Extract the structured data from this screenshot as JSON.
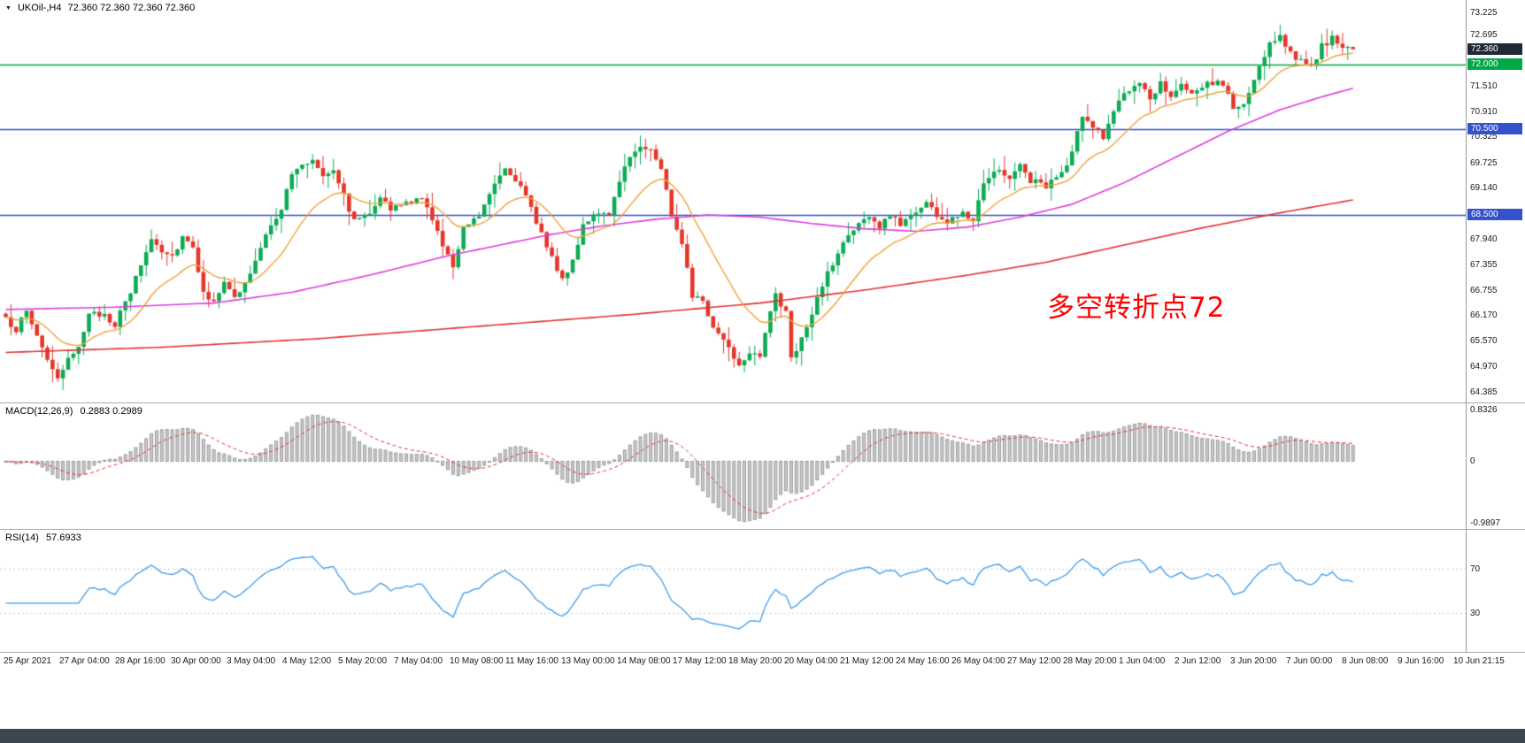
{
  "header": {
    "dropdown_icon": "▼",
    "symbol": "UKOil-,H4",
    "ohlc": "72.360 72.360 72.360 72.360"
  },
  "annotation": {
    "text": "多空转折点72",
    "color": "#ff0000"
  },
  "price_axis": {
    "min": 64.3,
    "max": 73.34,
    "ticks": [
      73.225,
      72.695,
      71.51,
      70.91,
      70.325,
      69.725,
      69.14,
      67.94,
      67.355,
      66.755,
      66.17,
      65.57,
      64.97,
      64.385
    ]
  },
  "levels": [
    {
      "value": 72.0,
      "label": "72.000",
      "color": "#00a846"
    },
    {
      "value": 70.5,
      "label": "70.500",
      "color": "#3352cc"
    },
    {
      "value": 68.5,
      "label": "68.500",
      "color": "#3352cc"
    }
  ],
  "current_price": {
    "value": 72.36,
    "label": "72.360",
    "badge_color": "#1f2833"
  },
  "chart_data": {
    "type": "candlestick",
    "symbol": "UKOil-",
    "timeframe": "H4",
    "title": "UKOil-,H4",
    "candles_count": 260,
    "last_close": 72.36,
    "up_color": "#0cab54",
    "down_color": "#e5362a",
    "close_waypoints": [
      [
        0,
        66.05
      ],
      [
        2,
        65.85
      ],
      [
        4,
        66.25
      ],
      [
        6,
        65.7
      ],
      [
        9,
        64.9
      ],
      [
        10,
        64.62
      ],
      [
        12,
        65.1
      ],
      [
        14,
        65.5
      ],
      [
        16,
        66.15
      ],
      [
        19,
        66.2
      ],
      [
        21,
        65.95
      ],
      [
        24,
        66.7
      ],
      [
        26,
        67.35
      ],
      [
        28,
        67.95
      ],
      [
        30,
        67.7
      ],
      [
        32,
        67.55
      ],
      [
        34,
        68.0
      ],
      [
        36,
        67.8
      ],
      [
        38,
        66.65
      ],
      [
        40,
        66.55
      ],
      [
        42,
        66.9
      ],
      [
        44,
        66.55
      ],
      [
        46,
        66.9
      ],
      [
        48,
        67.4
      ],
      [
        51,
        68.3
      ],
      [
        53,
        68.65
      ],
      [
        55,
        69.45
      ],
      [
        57,
        69.65
      ],
      [
        59,
        69.8
      ],
      [
        61,
        69.45
      ],
      [
        63,
        69.6
      ],
      [
        65,
        68.95
      ],
      [
        67,
        68.35
      ],
      [
        70,
        68.6
      ],
      [
        72,
        68.95
      ],
      [
        74,
        68.6
      ],
      [
        77,
        68.8
      ],
      [
        80,
        68.85
      ],
      [
        82,
        68.45
      ],
      [
        84,
        67.75
      ],
      [
        86,
        67.3
      ],
      [
        88,
        68.25
      ],
      [
        91,
        68.5
      ],
      [
        94,
        69.3
      ],
      [
        96,
        69.6
      ],
      [
        98,
        69.35
      ],
      [
        100,
        68.9
      ],
      [
        102,
        68.35
      ],
      [
        105,
        67.55
      ],
      [
        107,
        66.95
      ],
      [
        109,
        67.45
      ],
      [
        111,
        68.3
      ],
      [
        113,
        68.5
      ],
      [
        116,
        68.45
      ],
      [
        118,
        69.35
      ],
      [
        120,
        69.85
      ],
      [
        122,
        70.15
      ],
      [
        124,
        70.0
      ],
      [
        126,
        69.6
      ],
      [
        128,
        68.5
      ],
      [
        130,
        67.9
      ],
      [
        132,
        66.65
      ],
      [
        134,
        66.45
      ],
      [
        136,
        65.9
      ],
      [
        139,
        65.45
      ],
      [
        141,
        65.0
      ],
      [
        143,
        65.35
      ],
      [
        145,
        65.25
      ],
      [
        147,
        66.3
      ],
      [
        148,
        66.6
      ],
      [
        150,
        66.2
      ],
      [
        151,
        65.2
      ],
      [
        153,
        65.6
      ],
      [
        155,
        66.15
      ],
      [
        157,
        66.9
      ],
      [
        159,
        67.35
      ],
      [
        161,
        67.85
      ],
      [
        163,
        68.2
      ],
      [
        166,
        68.45
      ],
      [
        168,
        68.2
      ],
      [
        170,
        68.5
      ],
      [
        172,
        68.3
      ],
      [
        175,
        68.6
      ],
      [
        177,
        68.8
      ],
      [
        179,
        68.5
      ],
      [
        181,
        68.3
      ],
      [
        184,
        68.6
      ],
      [
        186,
        68.4
      ],
      [
        188,
        69.3
      ],
      [
        190,
        69.55
      ],
      [
        193,
        69.4
      ],
      [
        195,
        69.65
      ],
      [
        197,
        69.3
      ],
      [
        200,
        69.2
      ],
      [
        202,
        69.35
      ],
      [
        204,
        69.6
      ],
      [
        206,
        70.4
      ],
      [
        207,
        70.75
      ],
      [
        209,
        70.6
      ],
      [
        211,
        70.3
      ],
      [
        213,
        70.9
      ],
      [
        215,
        71.35
      ],
      [
        218,
        71.5
      ],
      [
        220,
        71.2
      ],
      [
        222,
        71.6
      ],
      [
        224,
        71.3
      ],
      [
        226,
        71.5
      ],
      [
        228,
        71.25
      ],
      [
        230,
        71.5
      ],
      [
        233,
        71.6
      ],
      [
        235,
        71.35
      ],
      [
        236,
        70.95
      ],
      [
        238,
        71.05
      ],
      [
        241,
        71.9
      ],
      [
        243,
        72.55
      ],
      [
        245,
        72.65
      ],
      [
        247,
        72.3
      ],
      [
        249,
        72.05
      ],
      [
        251,
        71.9
      ],
      [
        253,
        72.45
      ],
      [
        255,
        72.6
      ],
      [
        257,
        72.35
      ],
      [
        259,
        72.36
      ]
    ],
    "moving_averages": {
      "fast": {
        "type": "ema",
        "period": 16,
        "color": "#eda33b"
      },
      "mid": {
        "color": "#dd3ddd",
        "waypoints": [
          [
            0,
            66.3
          ],
          [
            20,
            66.35
          ],
          [
            40,
            66.45
          ],
          [
            55,
            66.7
          ],
          [
            70,
            67.1
          ],
          [
            85,
            67.55
          ],
          [
            95,
            67.8
          ],
          [
            105,
            68.05
          ],
          [
            115,
            68.25
          ],
          [
            125,
            68.4
          ],
          [
            135,
            68.5
          ],
          [
            145,
            68.45
          ],
          [
            155,
            68.3
          ],
          [
            165,
            68.18
          ],
          [
            175,
            68.12
          ],
          [
            185,
            68.22
          ],
          [
            195,
            68.45
          ],
          [
            205,
            68.75
          ],
          [
            215,
            69.25
          ],
          [
            225,
            69.85
          ],
          [
            235,
            70.45
          ],
          [
            245,
            70.95
          ],
          [
            253,
            71.25
          ],
          [
            259,
            71.45
          ]
        ]
      },
      "slow": {
        "color": "#e03232",
        "waypoints": [
          [
            0,
            65.3
          ],
          [
            30,
            65.42
          ],
          [
            60,
            65.62
          ],
          [
            90,
            65.9
          ],
          [
            120,
            66.18
          ],
          [
            145,
            66.45
          ],
          [
            165,
            66.75
          ],
          [
            185,
            67.1
          ],
          [
            200,
            67.4
          ],
          [
            215,
            67.8
          ],
          [
            230,
            68.2
          ],
          [
            245,
            68.55
          ],
          [
            259,
            68.85
          ]
        ]
      }
    },
    "macd": {
      "label": "MACD(12,26,9)",
      "values_text": "0.2883 0.2989",
      "fast": 12,
      "slow": 26,
      "signal_period": 9,
      "hist_color": "#c8c8c8",
      "signal_color": "#e03232",
      "max": 0.8326,
      "min": -0.9897,
      "axis": [
        {
          "v": 0.8326,
          "label": "0.8326"
        },
        {
          "v": 0,
          "label": "0"
        },
        {
          "v": -0.9897,
          "label": "-0.9897"
        }
      ]
    },
    "rsi": {
      "label": "RSI(14)",
      "value_text": "57.6933",
      "period": 14,
      "color": "#3d9be9",
      "levels": [
        {
          "v": 70,
          "label": "70"
        },
        {
          "v": 30,
          "label": "30"
        }
      ]
    },
    "time_labels": [
      "25 Apr 2021",
      "27 Apr 04:00",
      "28 Apr 16:00",
      "30 Apr 00:00",
      "3 May 04:00",
      "4 May 12:00",
      "5 May 20:00",
      "7 May 04:00",
      "10 May 08:00",
      "11 May 16:00",
      "13 May 00:00",
      "14 May 08:00",
      "17 May 12:00",
      "18 May 20:00",
      "20 May 04:00",
      "21 May 12:00",
      "24 May 16:00",
      "26 May 04:00",
      "27 May 12:00",
      "28 May 20:00",
      "1 Jun 04:00",
      "2 Jun 12:00",
      "3 Jun 20:00",
      "7 Jun 00:00",
      "8 Jun 08:00",
      "9 Jun 16:00",
      "10 Jun 21:15"
    ]
  }
}
